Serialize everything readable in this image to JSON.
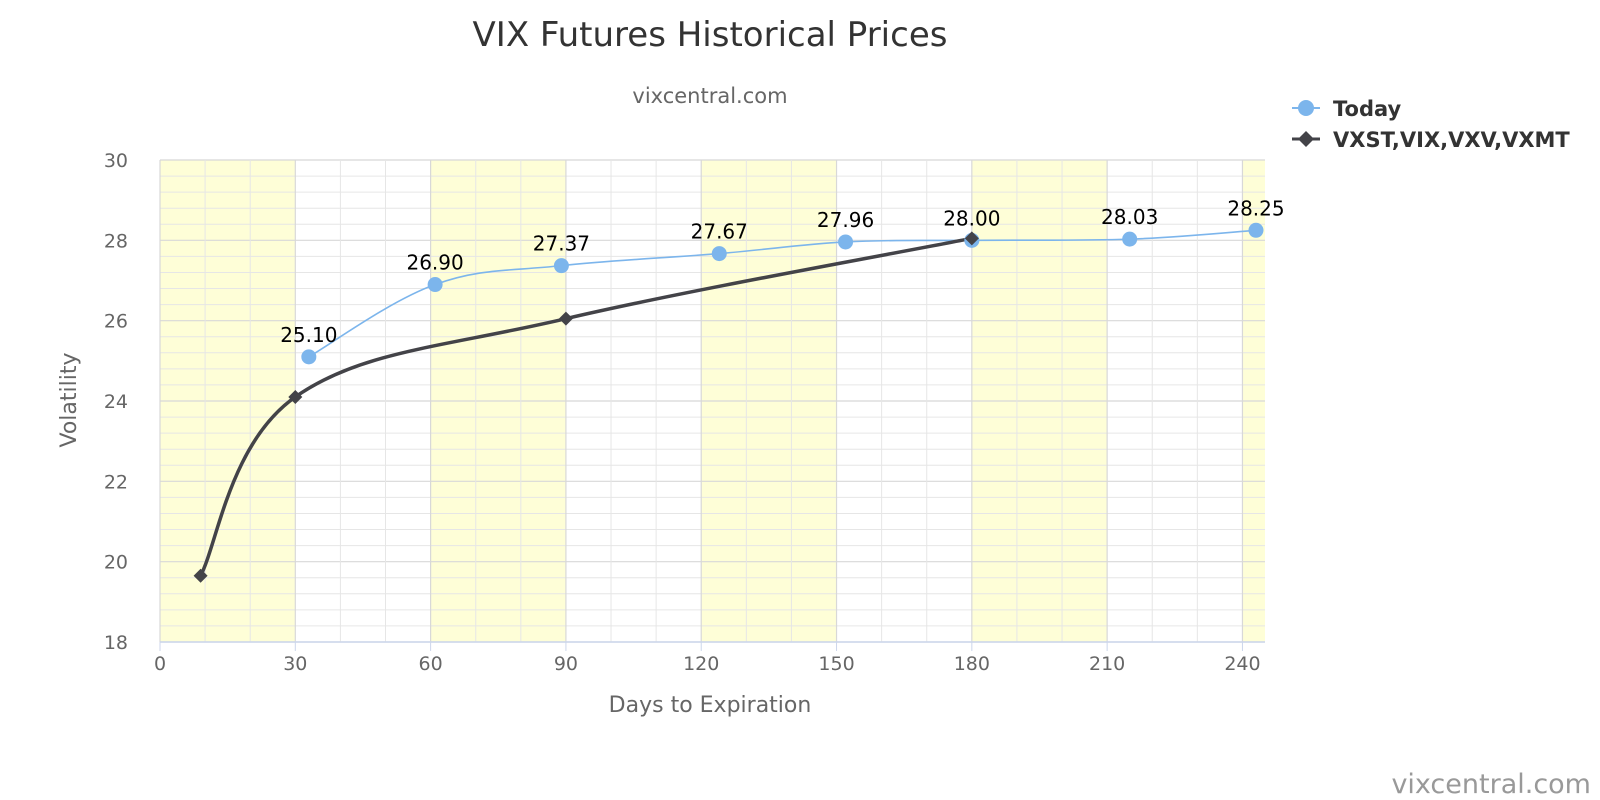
{
  "chart_data": {
    "type": "line",
    "title": "VIX Futures Historical Prices",
    "subtitle": "vixcentral.com",
    "xlabel": "Days to Expiration",
    "ylabel": "Volatility",
    "xlim": [
      0,
      245
    ],
    "ylim": [
      18,
      30
    ],
    "xticks": [
      0,
      30,
      60,
      90,
      120,
      150,
      180,
      210,
      240
    ],
    "yticks": [
      18,
      20,
      22,
      24,
      26,
      28,
      30
    ],
    "grid": true,
    "shaded_bands": [
      [
        0,
        30
      ],
      [
        60,
        90
      ],
      [
        120,
        150
      ],
      [
        180,
        210
      ],
      [
        240,
        245
      ]
    ],
    "legend_position": "top-right",
    "series": [
      {
        "name": "Today",
        "color": "#7cb5ec",
        "marker": "circle",
        "x": [
          33,
          61,
          89,
          124,
          152,
          180,
          215,
          243
        ],
        "values": [
          25.1,
          26.9,
          27.37,
          27.67,
          27.96,
          28.0,
          28.03,
          28.25
        ],
        "labels": [
          "25.10",
          "26.90",
          "27.37",
          "27.67",
          "27.96",
          "28.00",
          "28.03",
          "28.25"
        ]
      },
      {
        "name": "VXST,VIX,VXV,VXMT",
        "color": "#434348",
        "marker": "diamond",
        "x": [
          9,
          30,
          90,
          180
        ],
        "values": [
          19.65,
          24.1,
          26.05,
          28.05
        ]
      }
    ]
  },
  "credit": "vixcentral.com"
}
